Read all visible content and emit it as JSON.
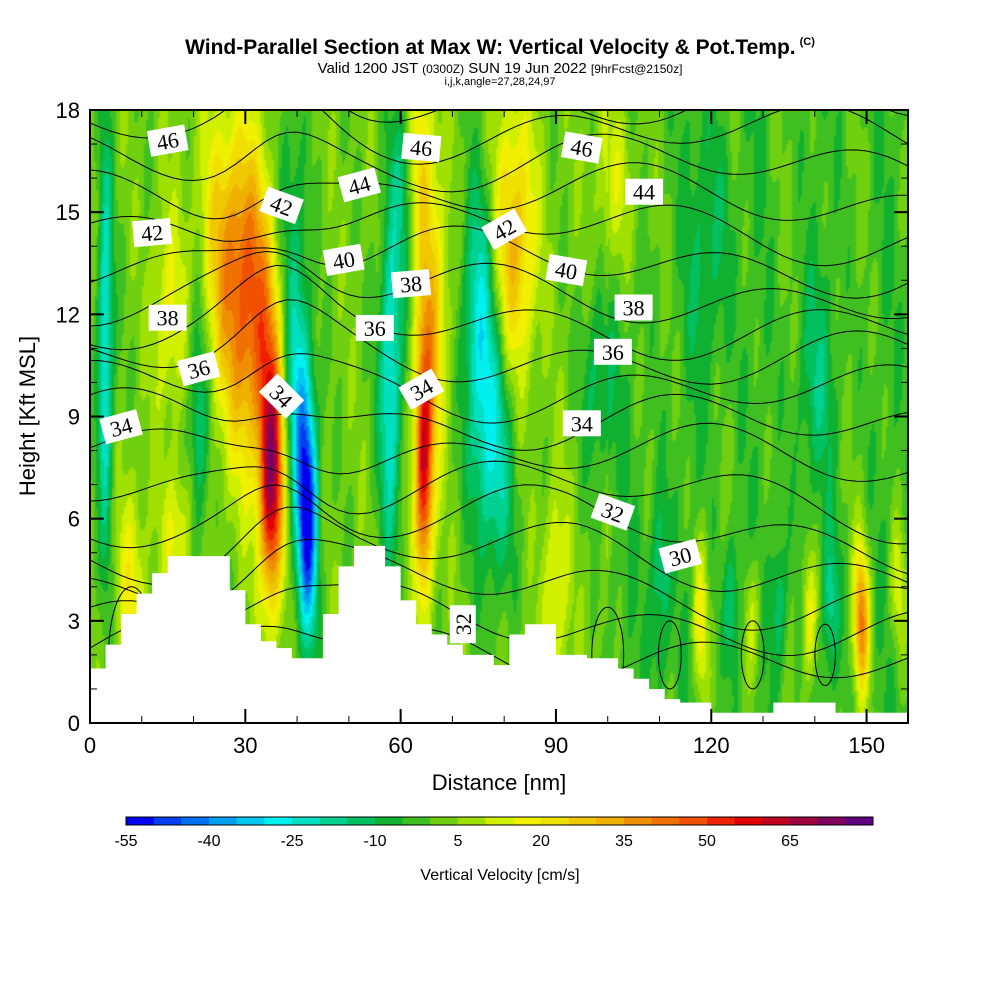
{
  "header": {
    "title": "Wind-Parallel Section at Max W: Vertical Velocity & Pot.Temp.",
    "copyright_mark": "(C)",
    "subtitle_valid": "Valid 1200 JST",
    "subtitle_utc": "(0300Z)",
    "subtitle_date": "SUN 19 Jun 2022",
    "subtitle_fcst": "[9hrFcst@2150z]",
    "subtitle_params": "i,j,k,angle=27,28,24,97"
  },
  "chart_data": {
    "type": "heatmap",
    "xlabel": "Distance [nm]",
    "ylabel": "Height [Kft MSL]",
    "xlim": [
      0,
      158
    ],
    "ylim": [
      0,
      18
    ],
    "x_ticks": [
      "0",
      "30",
      "60",
      "90",
      "120",
      "150"
    ],
    "y_ticks": [
      "0",
      "3",
      "6",
      "9",
      "12",
      "15",
      "18"
    ],
    "colorbar": {
      "label": "Vertical Velocity [cm/s]",
      "tick_labels": [
        "-55",
        "-40",
        "-25",
        "-10",
        "5",
        "20",
        "35",
        "50",
        "65"
      ],
      "levels": [
        -55,
        -50,
        -45,
        -40,
        -35,
        -30,
        -25,
        -20,
        -15,
        -10,
        -5,
        0,
        5,
        10,
        15,
        20,
        25,
        30,
        35,
        40,
        45,
        50,
        55,
        60,
        65,
        70,
        75
      ],
      "colors": [
        "#0000f0",
        "#0040f0",
        "#0070f0",
        "#00a0f0",
        "#00c8f0",
        "#00f0f0",
        "#00e0c0",
        "#00d090",
        "#00c060",
        "#10b030",
        "#40c020",
        "#70d010",
        "#a0e000",
        "#d0f000",
        "#f0f000",
        "#f0e000",
        "#f0c800",
        "#f0b000",
        "#f09000",
        "#f07000",
        "#f05000",
        "#f02000",
        "#e00000",
        "#c00020",
        "#a00040",
        "#800060",
        "#600080"
      ]
    },
    "vertical_velocity_features": [
      {
        "x": 35,
        "y": 7.0,
        "w": 2.2,
        "h": 3.5,
        "value": 60
      },
      {
        "x": 32,
        "y": 11.5,
        "w": 6,
        "h": 4.5,
        "value": 35
      },
      {
        "x": 27,
        "y": 14,
        "w": 6,
        "h": 4,
        "value": 25
      },
      {
        "x": 42,
        "y": 6.0,
        "w": 2.0,
        "h": 3.5,
        "value": -55
      },
      {
        "x": 40,
        "y": 10,
        "w": 2.5,
        "h": 4,
        "value": -30
      },
      {
        "x": 38,
        "y": 15,
        "w": 3,
        "h": 4,
        "value": -15
      },
      {
        "x": 64.5,
        "y": 7.5,
        "w": 1.8,
        "h": 3.5,
        "value": 55
      },
      {
        "x": 66,
        "y": 12,
        "w": 3,
        "h": 4,
        "value": 25
      },
      {
        "x": 63,
        "y": 16.5,
        "w": 3,
        "h": 3,
        "value": 25
      },
      {
        "x": 58,
        "y": 10,
        "w": 2.2,
        "h": 5,
        "value": -30
      },
      {
        "x": 61,
        "y": 16,
        "w": 2.5,
        "h": 3,
        "value": -25
      },
      {
        "x": 82,
        "y": 14,
        "w": 4,
        "h": 4,
        "value": 30
      },
      {
        "x": 78,
        "y": 8,
        "w": 4,
        "h": 4,
        "value": -25
      },
      {
        "x": 75,
        "y": 12,
        "w": 3,
        "h": 4,
        "value": -25
      },
      {
        "x": 3,
        "y": 11,
        "w": 1.5,
        "h": 6,
        "value": -30
      },
      {
        "x": 21,
        "y": 9,
        "w": 2,
        "h": 4,
        "value": -20
      },
      {
        "x": 15,
        "y": 12,
        "w": 3,
        "h": 3,
        "value": 15
      },
      {
        "x": 8,
        "y": 4,
        "w": 3,
        "h": 3,
        "value": 15
      },
      {
        "x": 17,
        "y": 5.5,
        "w": 3,
        "h": 2,
        "value": 15
      },
      {
        "x": 90,
        "y": 4,
        "w": 2.5,
        "h": 3,
        "value": 15
      },
      {
        "x": 98,
        "y": 10,
        "w": 3,
        "h": 3,
        "value": -15
      },
      {
        "x": 110,
        "y": 4,
        "w": 2,
        "h": 3,
        "value": -15
      },
      {
        "x": 118,
        "y": 3,
        "w": 1.5,
        "h": 2.5,
        "value": 20
      },
      {
        "x": 124,
        "y": 3.5,
        "w": 1.5,
        "h": 2,
        "value": -15
      },
      {
        "x": 128,
        "y": 3,
        "w": 1.5,
        "h": 2,
        "value": 15
      },
      {
        "x": 133,
        "y": 3.5,
        "w": 1.5,
        "h": 2,
        "value": -15
      },
      {
        "x": 139,
        "y": 3,
        "w": 1.5,
        "h": 2,
        "value": 20
      },
      {
        "x": 149,
        "y": 3.0,
        "w": 1.5,
        "h": 2.2,
        "value": 40
      },
      {
        "x": 143,
        "y": 3.5,
        "w": 1.5,
        "h": 2,
        "value": -15
      },
      {
        "x": 156,
        "y": 4,
        "w": 1.5,
        "h": 2,
        "value": 15
      },
      {
        "x": 102,
        "y": 16,
        "w": 4,
        "h": 3,
        "value": 15
      },
      {
        "x": 120,
        "y": 14,
        "w": 4,
        "h": 4,
        "value": -10
      },
      {
        "x": 140,
        "y": 10,
        "w": 4,
        "h": 3,
        "value": -10
      }
    ],
    "terrain": [
      [
        0,
        1.6
      ],
      [
        3,
        2.3
      ],
      [
        6,
        3.2
      ],
      [
        9,
        3.8
      ],
      [
        12,
        4.4
      ],
      [
        15,
        4.9
      ],
      [
        27,
        3.9
      ],
      [
        30,
        2.9
      ],
      [
        33,
        2.4
      ],
      [
        36,
        2.2
      ],
      [
        39,
        1.9
      ],
      [
        45,
        3.2
      ],
      [
        48,
        4.6
      ],
      [
        51,
        5.2
      ],
      [
        57,
        4.6
      ],
      [
        60,
        3.6
      ],
      [
        63,
        2.9
      ],
      [
        66,
        2.6
      ],
      [
        69,
        2.3
      ],
      [
        72,
        2.0
      ],
      [
        78,
        1.7
      ],
      [
        81,
        2.6
      ],
      [
        84,
        2.9
      ],
      [
        90,
        2.0
      ],
      [
        96,
        1.9
      ],
      [
        102,
        1.6
      ],
      [
        105,
        1.3
      ],
      [
        108,
        1.0
      ],
      [
        111,
        0.7
      ],
      [
        114,
        0.6
      ],
      [
        120,
        0.3
      ],
      [
        132,
        0.6
      ],
      [
        144,
        0.3
      ],
      [
        158,
        0.3
      ]
    ],
    "theta_contour_labels": [
      {
        "text": "46",
        "x": 15,
        "y": 17.1,
        "angle": -10
      },
      {
        "text": "42",
        "x": 12,
        "y": 14.4,
        "angle": -5
      },
      {
        "text": "38",
        "x": 15,
        "y": 11.9,
        "angle": 0
      },
      {
        "text": "36",
        "x": 21,
        "y": 10.4,
        "angle": -15
      },
      {
        "text": "34",
        "x": 6,
        "y": 8.7,
        "angle": -15
      },
      {
        "text": "42",
        "x": 37,
        "y": 15.2,
        "angle": 20
      },
      {
        "text": "44",
        "x": 52,
        "y": 15.8,
        "angle": -15
      },
      {
        "text": "40",
        "x": 49,
        "y": 13.6,
        "angle": -10
      },
      {
        "text": "46",
        "x": 64,
        "y": 16.9,
        "angle": 5
      },
      {
        "text": "38",
        "x": 62,
        "y": 12.9,
        "angle": -5
      },
      {
        "text": "36",
        "x": 55,
        "y": 11.6,
        "angle": 0
      },
      {
        "text": "34",
        "x": 37,
        "y": 9.6,
        "angle": 45
      },
      {
        "text": "34",
        "x": 64,
        "y": 9.8,
        "angle": -30
      },
      {
        "text": "42",
        "x": 80,
        "y": 14.5,
        "angle": -30
      },
      {
        "text": "46",
        "x": 95,
        "y": 16.9,
        "angle": 10
      },
      {
        "text": "44",
        "x": 107,
        "y": 15.6,
        "angle": 0
      },
      {
        "text": "40",
        "x": 92,
        "y": 13.3,
        "angle": 10
      },
      {
        "text": "38",
        "x": 105,
        "y": 12.2,
        "angle": 0
      },
      {
        "text": "36",
        "x": 101,
        "y": 10.9,
        "angle": 0
      },
      {
        "text": "34",
        "x": 95,
        "y": 8.8,
        "angle": 0
      },
      {
        "text": "32",
        "x": 101,
        "y": 6.2,
        "angle": 20
      },
      {
        "text": "30",
        "x": 114,
        "y": 4.9,
        "angle": -15
      },
      {
        "text": "32",
        "x": 72,
        "y": 2.9,
        "angle": -90
      }
    ],
    "theta_levels": [
      30,
      31,
      32,
      33,
      34,
      35,
      36,
      37,
      38,
      39,
      40,
      41,
      42,
      43,
      44,
      45,
      46,
      47
    ]
  }
}
